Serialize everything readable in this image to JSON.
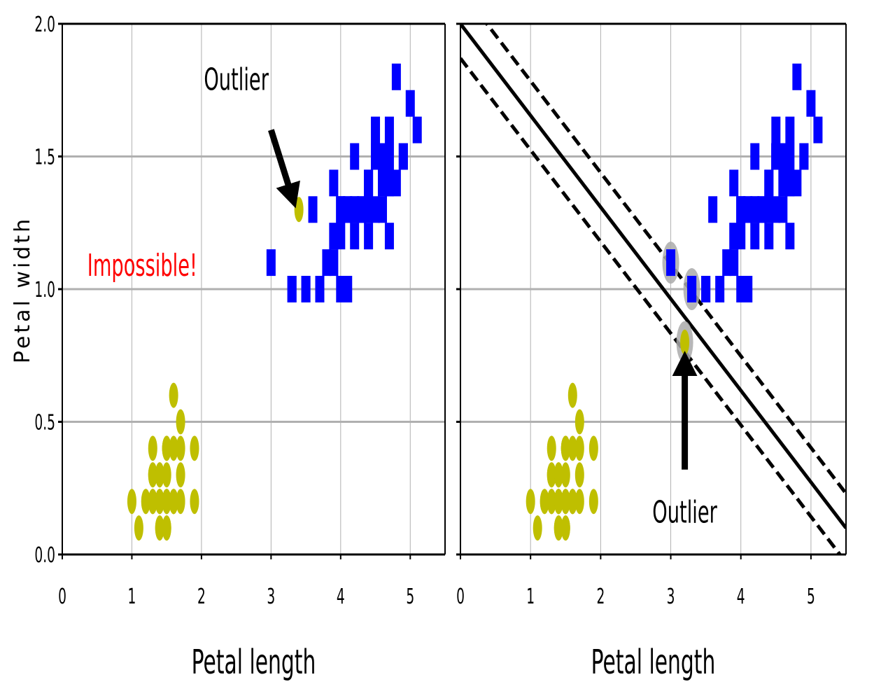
{
  "chart_data": {
    "type": "scatter",
    "shared": {
      "xlabel": "Petal length",
      "ylabel": "Petal width",
      "xlim": [
        0,
        5.5
      ],
      "ylim": [
        0,
        2.0
      ],
      "xticks": [
        "0",
        "1",
        "2",
        "3",
        "4",
        "5"
      ],
      "yticks": [
        "0.0",
        "0.5",
        "1.0",
        "1.5",
        "2.0"
      ],
      "grid": true
    },
    "colors": {
      "setosa": "#bfbf00",
      "versicolor": "#0000ff",
      "text_red": "#ff0000",
      "highlight": "#aaaaaa",
      "grid": "#b0b0b0"
    },
    "series": [
      {
        "marker": "ellipse",
        "color": "#bfbf00",
        "points": [
          [
            1.4,
            0.2
          ],
          [
            1.4,
            0.2
          ],
          [
            1.3,
            0.2
          ],
          [
            1.5,
            0.2
          ],
          [
            1.4,
            0.2
          ],
          [
            1.7,
            0.4
          ],
          [
            1.4,
            0.3
          ],
          [
            1.5,
            0.2
          ],
          [
            1.4,
            0.2
          ],
          [
            1.5,
            0.1
          ],
          [
            1.5,
            0.2
          ],
          [
            1.6,
            0.2
          ],
          [
            1.4,
            0.1
          ],
          [
            1.1,
            0.1
          ],
          [
            1.2,
            0.2
          ],
          [
            1.5,
            0.4
          ],
          [
            1.3,
            0.4
          ],
          [
            1.4,
            0.3
          ],
          [
            1.7,
            0.3
          ],
          [
            1.5,
            0.3
          ],
          [
            1.7,
            0.2
          ],
          [
            1.5,
            0.4
          ],
          [
            1.0,
            0.2
          ],
          [
            1.7,
            0.5
          ],
          [
            1.9,
            0.2
          ],
          [
            1.6,
            0.2
          ],
          [
            1.6,
            0.4
          ],
          [
            1.5,
            0.2
          ],
          [
            1.4,
            0.2
          ],
          [
            1.6,
            0.2
          ],
          [
            1.6,
            0.2
          ],
          [
            1.5,
            0.4
          ],
          [
            1.5,
            0.1
          ],
          [
            1.4,
            0.2
          ],
          [
            1.5,
            0.2
          ],
          [
            1.2,
            0.2
          ],
          [
            1.3,
            0.2
          ],
          [
            1.4,
            0.1
          ],
          [
            1.3,
            0.2
          ],
          [
            1.5,
            0.2
          ],
          [
            1.3,
            0.3
          ],
          [
            1.3,
            0.3
          ],
          [
            1.3,
            0.2
          ],
          [
            1.6,
            0.6
          ],
          [
            1.9,
            0.4
          ],
          [
            1.4,
            0.3
          ],
          [
            1.6,
            0.2
          ],
          [
            1.4,
            0.2
          ],
          [
            1.5,
            0.2
          ],
          [
            1.4,
            0.2
          ]
        ]
      },
      {
        "marker": "square",
        "color": "#0000ff",
        "points": [
          [
            4.7,
            1.4
          ],
          [
            4.5,
            1.5
          ],
          [
            4.9,
            1.5
          ],
          [
            4.0,
            1.3
          ],
          [
            4.6,
            1.5
          ],
          [
            4.5,
            1.3
          ],
          [
            4.7,
            1.6
          ],
          [
            3.3,
            1.0
          ],
          [
            4.6,
            1.3
          ],
          [
            3.9,
            1.4
          ],
          [
            3.5,
            1.0
          ],
          [
            4.2,
            1.5
          ],
          [
            4.0,
            1.0
          ],
          [
            4.7,
            1.4
          ],
          [
            3.6,
            1.3
          ],
          [
            4.4,
            1.4
          ],
          [
            4.5,
            1.5
          ],
          [
            4.1,
            1.0
          ],
          [
            4.5,
            1.5
          ],
          [
            3.9,
            1.1
          ],
          [
            4.8,
            1.8
          ],
          [
            4.0,
            1.3
          ],
          [
            4.9,
            1.5
          ],
          [
            4.7,
            1.2
          ],
          [
            4.3,
            1.3
          ],
          [
            4.4,
            1.4
          ],
          [
            4.8,
            1.4
          ],
          [
            5.0,
            1.7
          ],
          [
            4.5,
            1.5
          ],
          [
            3.5,
            1.0
          ],
          [
            3.8,
            1.1
          ],
          [
            3.7,
            1.0
          ],
          [
            3.9,
            1.2
          ],
          [
            5.1,
            1.6
          ],
          [
            4.5,
            1.5
          ],
          [
            4.5,
            1.6
          ],
          [
            4.7,
            1.5
          ],
          [
            4.4,
            1.3
          ],
          [
            4.1,
            1.3
          ],
          [
            4.0,
            1.3
          ],
          [
            4.4,
            1.2
          ],
          [
            4.6,
            1.4
          ],
          [
            4.0,
            1.2
          ],
          [
            3.3,
            1.0
          ],
          [
            4.2,
            1.3
          ],
          [
            4.2,
            1.2
          ],
          [
            4.2,
            1.3
          ],
          [
            4.3,
            1.3
          ],
          [
            3.0,
            1.1
          ],
          [
            4.1,
            1.3
          ]
        ]
      }
    ],
    "panels": [
      {
        "show_ylabel": true,
        "extra_points": [
          {
            "x": 3.4,
            "y": 1.3,
            "marker": "ellipse",
            "color": "#bfbf00"
          }
        ],
        "annotations": [
          {
            "text": "Outlier",
            "text_x": 2.5,
            "text_y": 1.75,
            "arrow_to_x": 3.3,
            "arrow_to_y": 1.35,
            "arrow_from_x": 3.0,
            "arrow_from_y": 1.6
          },
          {
            "text": "Impossible!",
            "text_x": 1.15,
            "text_y": 1.05,
            "color": "#ff0000"
          }
        ],
        "boundary": null
      },
      {
        "show_ylabel": false,
        "extra_points": [
          {
            "x": 3.2,
            "y": 0.8,
            "marker": "ellipse",
            "color": "#bfbf00"
          }
        ],
        "annotations": [
          {
            "text": "Outlier",
            "text_x": 3.2,
            "text_y": 0.12,
            "arrow_to_x": 3.2,
            "arrow_to_y": 0.72,
            "arrow_from_x": 3.2,
            "arrow_from_y": 0.32
          }
        ],
        "boundary": {
          "slope": -0.3455,
          "intercept": 2.0,
          "margin": 0.13
        },
        "support_vectors": [
          [
            3.0,
            1.1
          ],
          [
            3.3,
            1.0
          ],
          [
            3.2,
            0.8
          ]
        ]
      }
    ]
  }
}
